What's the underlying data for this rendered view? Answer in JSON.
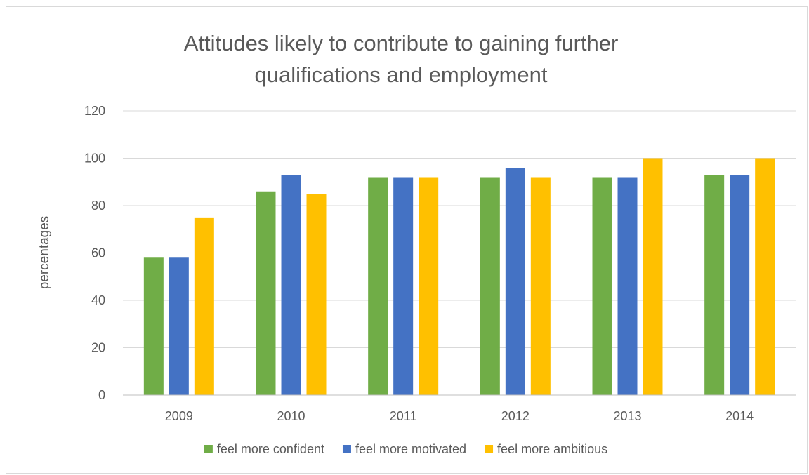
{
  "chart_data": {
    "type": "bar",
    "title_lines": [
      "Attitudes likely to contribute to gaining further",
      "qualifications and employment"
    ],
    "ylabel": "percentages",
    "xlabel": "",
    "categories": [
      "2009",
      "2010",
      "2011",
      "2012",
      "2013",
      "2014"
    ],
    "series": [
      {
        "name": "feel more confident",
        "color": "#70ad47",
        "values": [
          58,
          86,
          92,
          92,
          92,
          93
        ]
      },
      {
        "name": "feel more motivated",
        "color": "#4472c4",
        "values": [
          58,
          93,
          92,
          96,
          92,
          93
        ]
      },
      {
        "name": "feel more ambitious",
        "color": "#ffc000",
        "values": [
          75,
          85,
          92,
          92,
          100,
          100
        ]
      }
    ],
    "ylim": [
      0,
      120
    ],
    "yticks": [
      0,
      20,
      40,
      60,
      80,
      100,
      120
    ],
    "grid": true,
    "legend_position": "bottom",
    "colors": {
      "gridline": "#d9d9d9",
      "text": "#595959",
      "axis": "#bfbfbf"
    }
  }
}
